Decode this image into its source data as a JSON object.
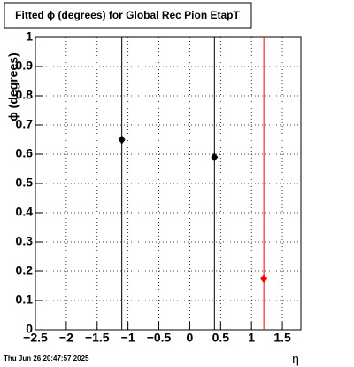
{
  "chart_data": {
    "type": "scatter",
    "title": "Fitted ϕ (degrees) for Global Rec Pion EtapT",
    "x_label": "η",
    "y_label": "ϕ (degrees)",
    "timestamp": "Thu Jun 26 20:47:57 2025",
    "x": [
      -1.1,
      0.4,
      1.2
    ],
    "values": [
      0.65,
      0.59,
      0.175
    ],
    "colors": [
      "#000000",
      "#000000",
      "#ff0000"
    ],
    "xlim": [
      -2.5,
      1.8
    ],
    "ylim": [
      0,
      1
    ],
    "xticks": [
      {
        "value": -2.5,
        "label": "−2.5"
      },
      {
        "value": -2,
        "label": "−2"
      },
      {
        "value": -1.5,
        "label": "−1.5"
      },
      {
        "value": -1,
        "label": "−1"
      },
      {
        "value": -0.5,
        "label": "−0.5"
      },
      0,
      0.5,
      1,
      1.5
    ],
    "yticks": [
      0,
      0.1,
      0.2,
      0.3,
      0.4,
      0.5,
      0.6,
      0.7,
      0.8,
      0.9,
      1
    ],
    "grid": true
  }
}
